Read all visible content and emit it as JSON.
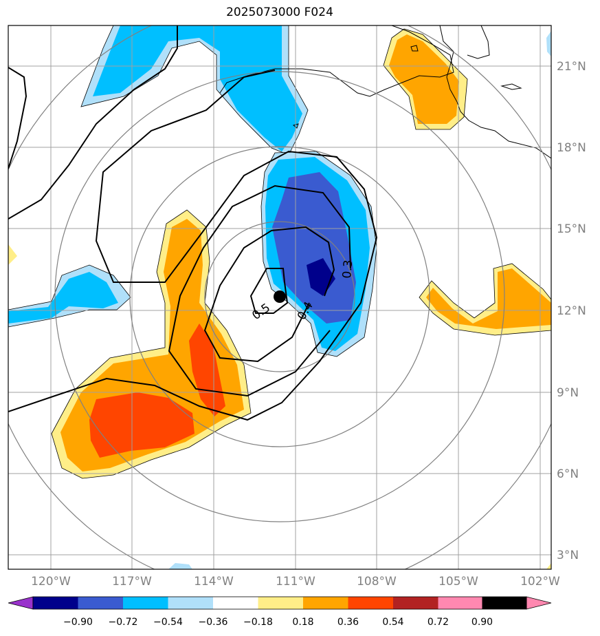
{
  "title": "2025073000 F024",
  "map": {
    "lon_ticks": [
      "120°W",
      "117°W",
      "114°W",
      "111°W",
      "108°W",
      "105°W",
      "102°W"
    ],
    "lat_ticks": [
      "21°N",
      "18°N",
      "15°N",
      "12°N",
      "9°N",
      "6°N",
      "3°N"
    ],
    "center_marker": {
      "lon": -111.6,
      "lat": 12.4
    },
    "range_rings_count": 4,
    "contour_labels": [
      "0.5",
      "0.4",
      "0.3"
    ]
  },
  "colorbar": {
    "ticks": [
      "−0.90",
      "−0.72",
      "−0.54",
      "−0.36",
      "−0.18",
      "0.18",
      "0.36",
      "0.54",
      "0.72",
      "0.90"
    ],
    "colors": [
      "#9932cc",
      "#00008b",
      "#3a5bd0",
      "#00bfff",
      "#b0e0fa",
      "#ffffff",
      "#ffee88",
      "#ffa500",
      "#ff4500",
      "#b22222",
      "#ff88b0"
    ]
  }
}
